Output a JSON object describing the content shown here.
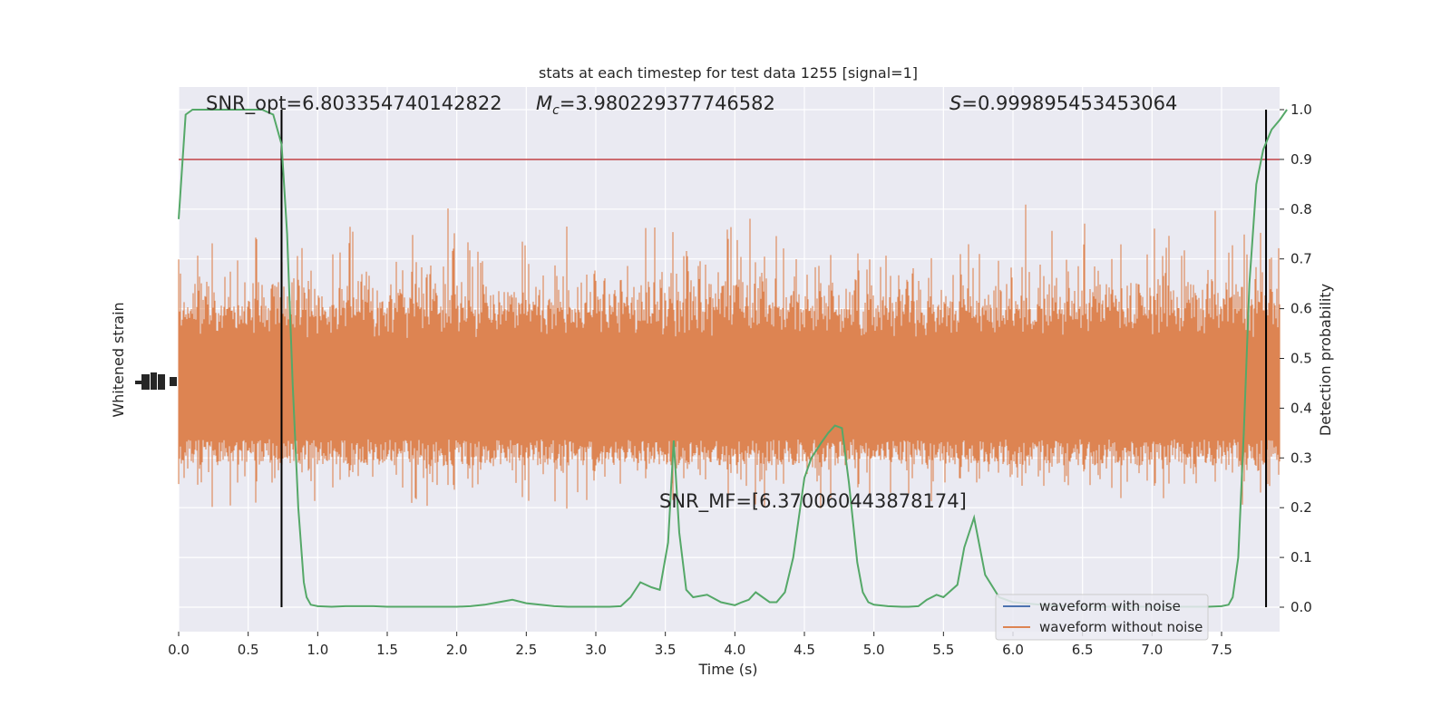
{
  "chart_data": {
    "type": "line",
    "title": "stats at each timestep for test data 1255 [signal=1]",
    "xlabel": "Time (s)",
    "ylabel_left": "Whitened strain",
    "ylabel_right": "Detection probability",
    "xlim": [
      0.0,
      8.0
    ],
    "ylim_right": [
      -0.05,
      1.05
    ],
    "x_ticks": [
      "0.0",
      "0.5",
      "1.0",
      "1.5",
      "2.0",
      "2.5",
      "3.0",
      "3.5",
      "4.0",
      "4.5",
      "5.0",
      "5.5",
      "6.0",
      "6.5",
      "7.0",
      "7.5"
    ],
    "x_tick_values": [
      0.0,
      0.5,
      1.0,
      1.5,
      2.0,
      2.5,
      3.0,
      3.5,
      4.0,
      4.5,
      5.0,
      5.5,
      6.0,
      6.5,
      7.0,
      7.5
    ],
    "right_ticks": [
      "0.0",
      "0.1",
      "0.2",
      "0.3",
      "0.4",
      "0.5",
      "0.6",
      "0.7",
      "0.8",
      "0.9",
      "1.0"
    ],
    "right_tick_values": [
      0.0,
      0.1,
      0.2,
      0.3,
      0.4,
      0.5,
      0.6,
      0.7,
      0.8,
      0.9,
      1.0
    ],
    "grid": true,
    "legend_position": "lower-right",
    "annotations": {
      "snr_opt": "SNR_opt=6.803354740142822",
      "mc_symbol": "M",
      "mc_sub": "c",
      "mc_value": "=3.980229377746582",
      "s_symbol": "S",
      "s_value": "=0.999895453453064",
      "snr_mf": "SNR_MF=[6.370060443878174]"
    },
    "threshold": 0.9,
    "vertical_lines_x": [
      0.74,
      7.82
    ],
    "colors": {
      "waveform_with_noise": "#4c72b0",
      "waveform_without_noise": "#dd8452",
      "probability": "#55a868",
      "threshold": "#c44e52",
      "vlines": "#000000",
      "background": "#eaeaf2",
      "grid": "#ffffff"
    },
    "series": [
      {
        "name": "waveform with noise",
        "role": "legend"
      },
      {
        "name": "waveform without noise",
        "role": "legend"
      },
      {
        "role": "detection-probability",
        "x": [
          0.0,
          0.05,
          0.1,
          0.15,
          0.2,
          0.3,
          0.4,
          0.5,
          0.6,
          0.68,
          0.74,
          0.78,
          0.82,
          0.86,
          0.9,
          0.92,
          0.95,
          1.0,
          1.1,
          1.2,
          1.3,
          1.4,
          1.5,
          1.6,
          1.8,
          2.0,
          2.1,
          2.2,
          2.3,
          2.4,
          2.5,
          2.6,
          2.7,
          2.8,
          2.9,
          3.0,
          3.1,
          3.18,
          3.25,
          3.32,
          3.4,
          3.46,
          3.52,
          3.56,
          3.6,
          3.65,
          3.7,
          3.8,
          3.9,
          4.0,
          4.05,
          4.1,
          4.15,
          4.2,
          4.25,
          4.3,
          4.36,
          4.42,
          4.5,
          4.55,
          4.62,
          4.67,
          4.72,
          4.77,
          4.82,
          4.88,
          4.92,
          4.96,
          5.0,
          5.1,
          5.2,
          5.25,
          5.32,
          5.38,
          5.45,
          5.5,
          5.6,
          5.65,
          5.72,
          5.8,
          5.9,
          6.0,
          6.2,
          6.4,
          6.6,
          6.8,
          7.0,
          7.2,
          7.4,
          7.5,
          7.55,
          7.58,
          7.62,
          7.66,
          7.7,
          7.75,
          7.8,
          7.86,
          7.92,
          7.97
        ],
        "values": [
          0.78,
          0.99,
          1.0,
          1.0,
          1.0,
          1.0,
          1.0,
          1.0,
          1.0,
          0.99,
          0.93,
          0.75,
          0.45,
          0.2,
          0.05,
          0.02,
          0.005,
          0.002,
          0.001,
          0.002,
          0.002,
          0.002,
          0.001,
          0.001,
          0.001,
          0.001,
          0.002,
          0.005,
          0.01,
          0.015,
          0.008,
          0.005,
          0.002,
          0.001,
          0.001,
          0.001,
          0.001,
          0.002,
          0.02,
          0.05,
          0.04,
          0.035,
          0.13,
          0.335,
          0.15,
          0.035,
          0.02,
          0.025,
          0.01,
          0.004,
          0.01,
          0.015,
          0.03,
          0.02,
          0.01,
          0.01,
          0.03,
          0.1,
          0.26,
          0.3,
          0.33,
          0.35,
          0.365,
          0.36,
          0.25,
          0.09,
          0.03,
          0.01,
          0.005,
          0.002,
          0.001,
          0.001,
          0.002,
          0.015,
          0.025,
          0.02,
          0.045,
          0.12,
          0.18,
          0.065,
          0.02,
          0.01,
          0.005,
          0.002,
          0.001,
          0.001,
          0.001,
          0.001,
          0.001,
          0.002,
          0.005,
          0.02,
          0.1,
          0.35,
          0.65,
          0.85,
          0.92,
          0.96,
          0.98,
          1.0
        ]
      },
      {
        "role": "whitened-strain",
        "amplitude_band": [
          0.3,
          0.6
        ],
        "note_values": "dense noisy trace"
      }
    ]
  }
}
